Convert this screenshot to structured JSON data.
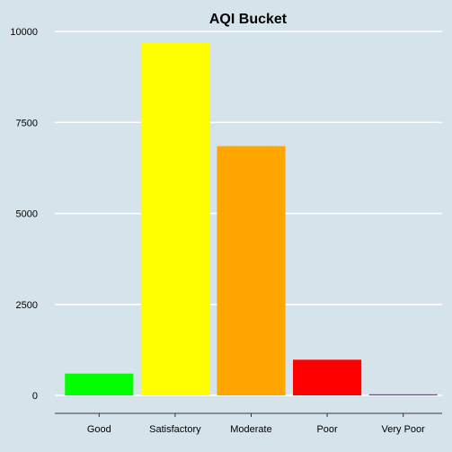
{
  "chart_data": {
    "type": "bar",
    "title": "AQI Bucket",
    "xlabel": "",
    "ylabel": "",
    "categories": [
      "Good",
      "Satisfactory",
      "Moderate",
      "Poor",
      "Very Poor"
    ],
    "values": [
      600,
      9700,
      6850,
      980,
      30
    ],
    "colors": [
      "#00ff00",
      "#ffff00",
      "#ffa500",
      "#ff0000",
      "#a020f0"
    ],
    "ylim": [
      0,
      10000
    ],
    "yticks": [
      0,
      2500,
      5000,
      7500,
      10000
    ],
    "ytick_labels": [
      "0",
      "2500",
      "5000",
      "7500",
      "10000"
    ],
    "grid": true,
    "background": "#d5e4eb",
    "gridline_color": "#ffffff"
  }
}
